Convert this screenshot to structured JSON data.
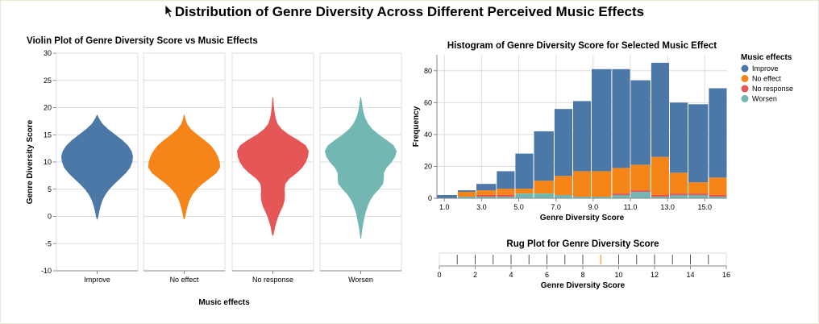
{
  "page": {
    "title": "Distribution of Genre Diversity Across Different Perceived Music Effects"
  },
  "colors": {
    "Improve": "#4c78a8",
    "No effect": "#f58518",
    "No response": "#e45756",
    "Worsen": "#72b7b2",
    "grid": "#dddddd",
    "axis": "#888888"
  },
  "chart_data": [
    {
      "type": "violin",
      "title": "Violin Plot of Genre Diversity Score vs Music Effects",
      "xlabel": "Music effects",
      "ylabel": "Genre Diversity Score",
      "ylim": [
        -10,
        30
      ],
      "yticks": [
        -10,
        -5,
        0,
        5,
        10,
        15,
        20,
        25,
        30
      ],
      "categories": [
        "Improve",
        "No effect",
        "No response",
        "Worsen"
      ],
      "grid": true,
      "violins": [
        {
          "name": "Improve",
          "profile": [
            [
              -0.5,
              0.0
            ],
            [
              0,
              0.02
            ],
            [
              1,
              0.05
            ],
            [
              2,
              0.09
            ],
            [
              3,
              0.14
            ],
            [
              4,
              0.22
            ],
            [
              5,
              0.33
            ],
            [
              6,
              0.48
            ],
            [
              7,
              0.64
            ],
            [
              8,
              0.8
            ],
            [
              9,
              0.92
            ],
            [
              10,
              0.98
            ],
            [
              11,
              1.0
            ],
            [
              12,
              0.96
            ],
            [
              13,
              0.86
            ],
            [
              14,
              0.7
            ],
            [
              15,
              0.5
            ],
            [
              16,
              0.3
            ],
            [
              17,
              0.14
            ],
            [
              18,
              0.04
            ],
            [
              18.6,
              0.0
            ]
          ]
        },
        {
          "name": "No effect",
          "profile": [
            [
              -0.5,
              0.0
            ],
            [
              0,
              0.02
            ],
            [
              1,
              0.05
            ],
            [
              2,
              0.09
            ],
            [
              3,
              0.14
            ],
            [
              4,
              0.22
            ],
            [
              5,
              0.34
            ],
            [
              6,
              0.5
            ],
            [
              7,
              0.7
            ],
            [
              8,
              0.9
            ],
            [
              9,
              1.0
            ],
            [
              10,
              0.99
            ],
            [
              11,
              0.94
            ],
            [
              12,
              0.86
            ],
            [
              13,
              0.74
            ],
            [
              14,
              0.56
            ],
            [
              15,
              0.36
            ],
            [
              16,
              0.18
            ],
            [
              17,
              0.07
            ],
            [
              18,
              0.02
            ],
            [
              18.6,
              0.0
            ]
          ]
        },
        {
          "name": "No response",
          "profile": [
            [
              -3.5,
              0.0
            ],
            [
              -3,
              0.02
            ],
            [
              -2,
              0.05
            ],
            [
              -1,
              0.09
            ],
            [
              0,
              0.14
            ],
            [
              1,
              0.21
            ],
            [
              2,
              0.28
            ],
            [
              3,
              0.32
            ],
            [
              4,
              0.33
            ],
            [
              5,
              0.32
            ],
            [
              6,
              0.34
            ],
            [
              7,
              0.46
            ],
            [
              8,
              0.66
            ],
            [
              9,
              0.82
            ],
            [
              10,
              0.92
            ],
            [
              11,
              0.98
            ],
            [
              12,
              1.0
            ],
            [
              13,
              0.92
            ],
            [
              14,
              0.7
            ],
            [
              15,
              0.44
            ],
            [
              16,
              0.24
            ],
            [
              17,
              0.12
            ],
            [
              18,
              0.07
            ],
            [
              19,
              0.04
            ],
            [
              20,
              0.02
            ],
            [
              21,
              0.01
            ],
            [
              21.8,
              0.0
            ]
          ]
        },
        {
          "name": "Worsen",
          "profile": [
            [
              -4,
              0.0
            ],
            [
              -3,
              0.02
            ],
            [
              -2,
              0.04
            ],
            [
              -1,
              0.07
            ],
            [
              0,
              0.1
            ],
            [
              1,
              0.14
            ],
            [
              2,
              0.19
            ],
            [
              3,
              0.26
            ],
            [
              4,
              0.36
            ],
            [
              5,
              0.5
            ],
            [
              6,
              0.62
            ],
            [
              7,
              0.64
            ],
            [
              8,
              0.64
            ],
            [
              9,
              0.72
            ],
            [
              10,
              0.86
            ],
            [
              11,
              0.96
            ],
            [
              12,
              1.0
            ],
            [
              13,
              0.92
            ],
            [
              14,
              0.72
            ],
            [
              15,
              0.5
            ],
            [
              16,
              0.32
            ],
            [
              17,
              0.2
            ],
            [
              18,
              0.12
            ],
            [
              19,
              0.07
            ],
            [
              20,
              0.04
            ],
            [
              21,
              0.02
            ],
            [
              21.8,
              0.0
            ]
          ]
        }
      ]
    },
    {
      "type": "bar",
      "stacked": true,
      "title": "Histogram of Genre Diversity Score for Selected Music Effect",
      "xlabel": "Genre Diversity Score",
      "ylabel": "Frequency",
      "xlim": [
        0.6,
        16.2
      ],
      "ylim": [
        0,
        90
      ],
      "xticks": [
        1.0,
        3.0,
        5.0,
        7.0,
        9.0,
        11.0,
        13.0,
        15.0
      ],
      "xtick_labels": [
        "1.0",
        "3.0",
        "5.0",
        "7.0",
        "9.0",
        "11.0",
        "13.0",
        "15.0"
      ],
      "yticks": [
        0,
        20,
        40,
        60,
        80
      ],
      "bins": [
        [
          0.6,
          1.7
        ],
        [
          1.7,
          2.7
        ],
        [
          2.7,
          3.8
        ],
        [
          3.8,
          4.8
        ],
        [
          4.8,
          5.8
        ],
        [
          5.8,
          6.9
        ],
        [
          6.9,
          7.9
        ],
        [
          7.9,
          8.9
        ],
        [
          8.9,
          10.0
        ],
        [
          10.0,
          11.0
        ],
        [
          11.0,
          12.1
        ],
        [
          12.1,
          13.1
        ],
        [
          13.1,
          14.1
        ],
        [
          14.1,
          15.2
        ],
        [
          15.2,
          16.2
        ]
      ],
      "legend": {
        "title": "Music effects",
        "position": "right"
      },
      "series": [
        {
          "name": "Worsen",
          "values": [
            0,
            1,
            1,
            1,
            3,
            3,
            2,
            1,
            1,
            2,
            4,
            1,
            2,
            2,
            1
          ]
        },
        {
          "name": "No response",
          "values": [
            0,
            0,
            1,
            1,
            0,
            0,
            0,
            0,
            0,
            1,
            1,
            1,
            1,
            1,
            1
          ]
        },
        {
          "name": "No effect",
          "values": [
            0,
            3,
            3,
            4,
            3,
            8,
            12,
            16,
            16,
            16,
            16,
            24,
            13,
            7,
            11
          ]
        },
        {
          "name": "Improve",
          "values": [
            2,
            1,
            4,
            11,
            22,
            31,
            42,
            44,
            64,
            62,
            53,
            59,
            44,
            49,
            56
          ]
        }
      ]
    },
    {
      "type": "rug",
      "title": "Rug Plot for Genre Diversity Score",
      "xlabel": "Genre Diversity Score",
      "xlim": [
        0,
        16
      ],
      "xticks": [
        0,
        2,
        4,
        6,
        8,
        10,
        12,
        14,
        16
      ],
      "values": [
        1,
        2,
        3,
        4,
        5,
        6,
        7,
        8,
        9,
        10,
        11,
        12,
        13,
        14,
        15
      ],
      "highlight": [
        9
      ]
    }
  ]
}
